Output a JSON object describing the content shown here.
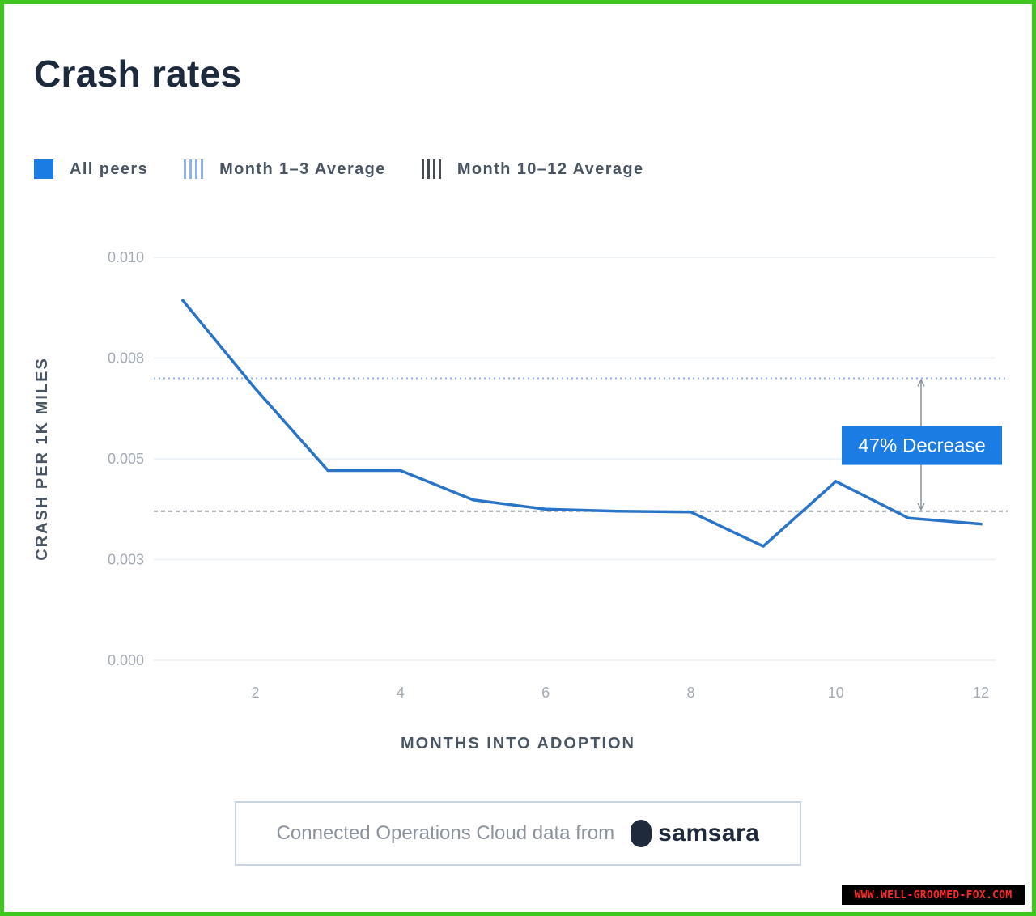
{
  "header": {
    "title": "Crash rates"
  },
  "legend": [
    {
      "label": "All peers",
      "style": "solid",
      "color": "#1b7ce4"
    },
    {
      "label": "Month 1–3 Average",
      "style": "striped",
      "color": "#8fb3ea"
    },
    {
      "label": "Month 10–12 Average",
      "style": "striped",
      "color": "#454c56"
    }
  ],
  "chart_data": {
    "type": "line",
    "xlabel": "MONTHS INTO ADOPTION",
    "ylabel": "CRASH PER 1K MILES",
    "xlim": [
      0.6,
      12.2
    ],
    "ylim": [
      0.0,
      0.01
    ],
    "x_ticks": [
      2,
      4,
      6,
      8,
      10,
      12
    ],
    "x_tick_labels": [
      "2",
      "4",
      "6",
      "8",
      "10",
      "12"
    ],
    "y_ticks": [
      0.0,
      0.0025,
      0.005,
      0.0075,
      0.01
    ],
    "y_tick_labels": [
      "0.000",
      "0.003",
      "0.005",
      "0.008",
      "0.010"
    ],
    "grid": true,
    "legend_position": "top-left",
    "series": [
      {
        "name": "All peers",
        "color": "#2a74c8",
        "x": [
          1,
          2,
          3,
          4,
          5,
          6,
          7,
          8,
          9,
          10,
          11,
          12
        ],
        "y": [
          0.00893,
          0.00674,
          0.00471,
          0.00471,
          0.00398,
          0.00375,
          0.0037,
          0.00368,
          0.00283,
          0.00444,
          0.00353,
          0.00338
        ]
      }
    ],
    "reference_lines": [
      {
        "name": "Month 1–3 Average",
        "y": 0.007,
        "color": "#8fb3ea",
        "style": "dotted"
      },
      {
        "name": "Month 10–12 Average",
        "y": 0.0037,
        "color": "#9aa0a8",
        "style": "dashed"
      }
    ],
    "annotations": [
      {
        "text": "47% Decrease",
        "x": 11.6,
        "from_y": 0.007,
        "to_y": 0.0037,
        "background": "#1b7ce4",
        "text_color": "#ffffff"
      }
    ]
  },
  "footer": {
    "source_text": "Connected Operations Cloud data from",
    "brand": "samsara"
  },
  "watermark": {
    "text": "WWW.WELL-GROOMED-FOX.COM"
  }
}
